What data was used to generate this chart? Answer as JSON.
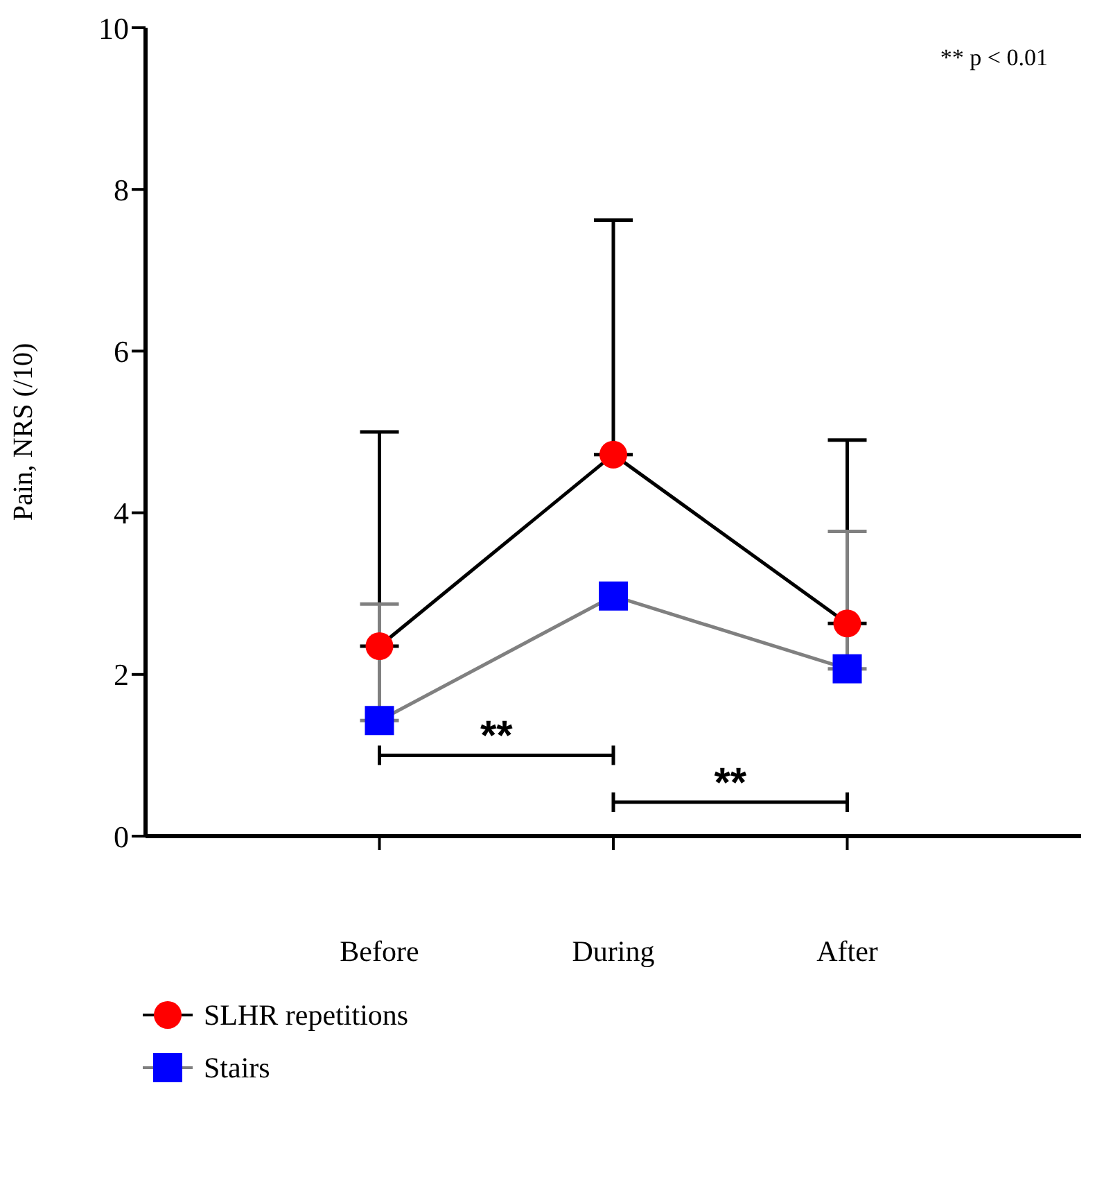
{
  "chart_data": {
    "type": "line",
    "ylabel": "Pain, NRS (/10)",
    "categories": [
      "Before",
      "During",
      "After"
    ],
    "series": [
      {
        "name": "SLHR repetitions",
        "color": "#ff0000",
        "values": [
          2.35,
          4.72,
          2.63
        ],
        "errors": [
          [
            2.35,
            5.0
          ],
          [
            4.72,
            7.62
          ],
          [
            2.63,
            4.9
          ]
        ],
        "marker": "circle"
      },
      {
        "name": "Stairs",
        "color": "#0000ff",
        "values": [
          1.43,
          2.97,
          2.07
        ],
        "errors": [
          [
            1.43,
            2.87
          ],
          null,
          [
            2.07,
            3.77
          ]
        ],
        "marker": "square"
      }
    ],
    "ylim": [
      0,
      10
    ],
    "yticks": [
      0,
      2,
      4,
      6,
      8,
      10
    ],
    "grid": false,
    "legend": "bottom left",
    "annotations": [
      "** p < 0.01",
      "**",
      "**"
    ]
  }
}
